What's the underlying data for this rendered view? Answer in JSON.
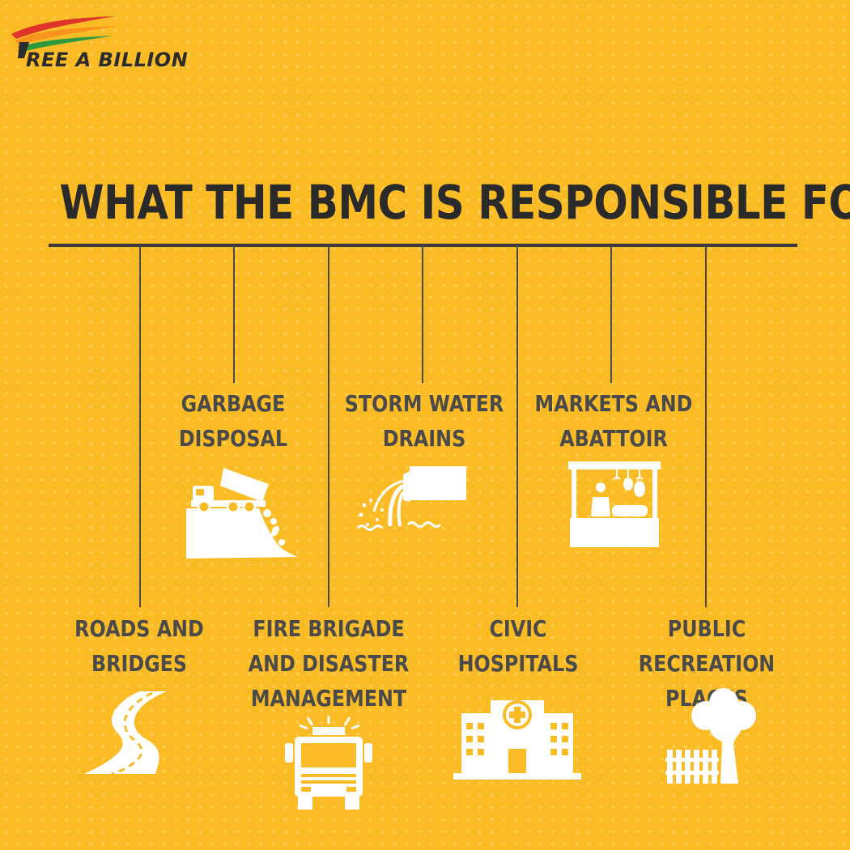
{
  "brand": {
    "name": "REE A BILLION",
    "colors": [
      "#e0332a",
      "#f7941d",
      "#2e9a3e",
      "#2c2c2c"
    ]
  },
  "title": "WHAT THE BMC IS RESPONSIBLE FOR",
  "colors": {
    "background": "#fbbb25",
    "text": "#4a4a4a",
    "title": "#2a2a2a",
    "icon": "#ffffff",
    "line": "#4a4a4a"
  },
  "responsibilities": [
    {
      "lines": [
        "ROADS AND",
        "BRIDGES"
      ],
      "icon": "road-icon"
    },
    {
      "lines": [
        "GARBAGE",
        "DISPOSAL"
      ],
      "icon": "dump-truck-icon"
    },
    {
      "lines": [
        "FIRE BRIGADE",
        "AND DISASTER",
        "MANAGEMENT"
      ],
      "icon": "fire-truck-icon"
    },
    {
      "lines": [
        "STORM WATER",
        "DRAINS"
      ],
      "icon": "drain-pipe-icon"
    },
    {
      "lines": [
        "CIVIC",
        "HOSPITALS"
      ],
      "icon": "hospital-icon"
    },
    {
      "lines": [
        "MARKETS AND",
        "ABATTOIR"
      ],
      "icon": "market-stall-icon"
    },
    {
      "lines": [
        "PUBLIC RECREATION",
        "PLACES"
      ],
      "icon": "park-tree-icon"
    }
  ]
}
